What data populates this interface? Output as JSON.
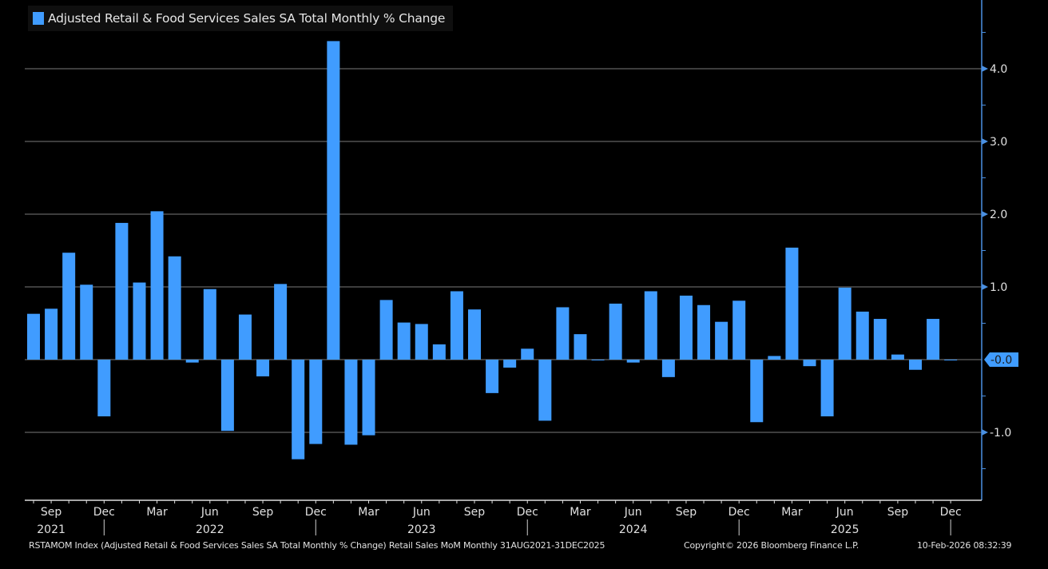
{
  "legend": {
    "label": "Adjusted Retail & Food Services Sales SA Total Monthly % Change",
    "color": "#409cff"
  },
  "footer": {
    "source": "RSTAMOM Index (Adjusted Retail & Food Services Sales SA Total Monthly % Change) Retail Sales MoM Monthly 31AUG2021-31DEC2025",
    "copyright": "Copyright© 2026 Bloomberg Finance L.P.",
    "timestamp": "10-Feb-2026 08:32:39"
  },
  "chart_data": {
    "type": "bar",
    "title": "Adjusted Retail & Food Services Sales SA Total Monthly % Change",
    "xlabel": "",
    "ylabel": "",
    "ylim": [
      -1.9,
      4.9
    ],
    "grid": true,
    "yticks": [
      4.0,
      3.0,
      2.0,
      1.0,
      -1.0
    ],
    "ytick_labels": [
      "4.0",
      "3.0",
      "2.0",
      "1.0",
      "-1.0"
    ],
    "last_value_label": "-0.0",
    "bar_color": "#409cff",
    "legend_position": "top-left",
    "categories": [
      "Aug 2021",
      "Sep 2021",
      "Oct 2021",
      "Nov 2021",
      "Dec 2021",
      "Jan 2022",
      "Feb 2022",
      "Mar 2022",
      "Apr 2022",
      "May 2022",
      "Jun 2022",
      "Jul 2022",
      "Aug 2022",
      "Sep 2022",
      "Oct 2022",
      "Nov 2022",
      "Dec 2022",
      "Jan 2023",
      "Feb 2023",
      "Mar 2023",
      "Apr 2023",
      "May 2023",
      "Jun 2023",
      "Jul 2023",
      "Aug 2023",
      "Sep 2023",
      "Oct 2023",
      "Nov 2023",
      "Dec 2023",
      "Jan 2024",
      "Feb 2024",
      "Mar 2024",
      "Apr 2024",
      "May 2024",
      "Jun 2024",
      "Jul 2024",
      "Aug 2024",
      "Sep 2024",
      "Oct 2024",
      "Nov 2024",
      "Dec 2024",
      "Jan 2025",
      "Feb 2025",
      "Mar 2025",
      "Apr 2025",
      "May 2025",
      "Jun 2025",
      "Jul 2025",
      "Aug 2025",
      "Sep 2025",
      "Oct 2025",
      "Nov 2025",
      "Dec 2025"
    ],
    "values": [
      0.63,
      0.7,
      1.47,
      1.03,
      -0.78,
      1.88,
      1.06,
      2.04,
      1.42,
      -0.04,
      0.97,
      -0.98,
      0.62,
      -0.23,
      1.04,
      -1.37,
      -1.16,
      4.38,
      -1.17,
      -1.04,
      0.82,
      0.51,
      0.49,
      0.21,
      0.94,
      0.69,
      -0.46,
      -0.11,
      0.15,
      -0.84,
      0.72,
      0.35,
      -0.01,
      0.77,
      -0.04,
      0.94,
      -0.24,
      0.88,
      0.75,
      0.52,
      0.81,
      -0.86,
      0.05,
      1.54,
      -0.09,
      -0.78,
      0.99,
      0.66,
      0.56,
      0.07,
      -0.14,
      0.56,
      -0.01
    ],
    "x_month_labels": [
      {
        "index": 1,
        "label": "Sep"
      },
      {
        "index": 4,
        "label": "Dec"
      },
      {
        "index": 7,
        "label": "Mar"
      },
      {
        "index": 10,
        "label": "Jun"
      },
      {
        "index": 13,
        "label": "Sep"
      },
      {
        "index": 16,
        "label": "Dec"
      },
      {
        "index": 19,
        "label": "Mar"
      },
      {
        "index": 22,
        "label": "Jun"
      },
      {
        "index": 25,
        "label": "Sep"
      },
      {
        "index": 28,
        "label": "Dec"
      },
      {
        "index": 31,
        "label": "Mar"
      },
      {
        "index": 34,
        "label": "Jun"
      },
      {
        "index": 37,
        "label": "Sep"
      },
      {
        "index": 40,
        "label": "Dec"
      },
      {
        "index": 43,
        "label": "Mar"
      },
      {
        "index": 46,
        "label": "Jun"
      },
      {
        "index": 49,
        "label": "Sep"
      },
      {
        "index": 52,
        "label": "Dec"
      }
    ],
    "x_year_labels": [
      {
        "index": 1,
        "label": "2021"
      },
      {
        "index": 10,
        "label": "2022"
      },
      {
        "index": 22,
        "label": "2023"
      },
      {
        "index": 34,
        "label": "2024"
      },
      {
        "index": 46,
        "label": "2025"
      }
    ],
    "year_separators": [
      4,
      16,
      28,
      40,
      52
    ]
  }
}
